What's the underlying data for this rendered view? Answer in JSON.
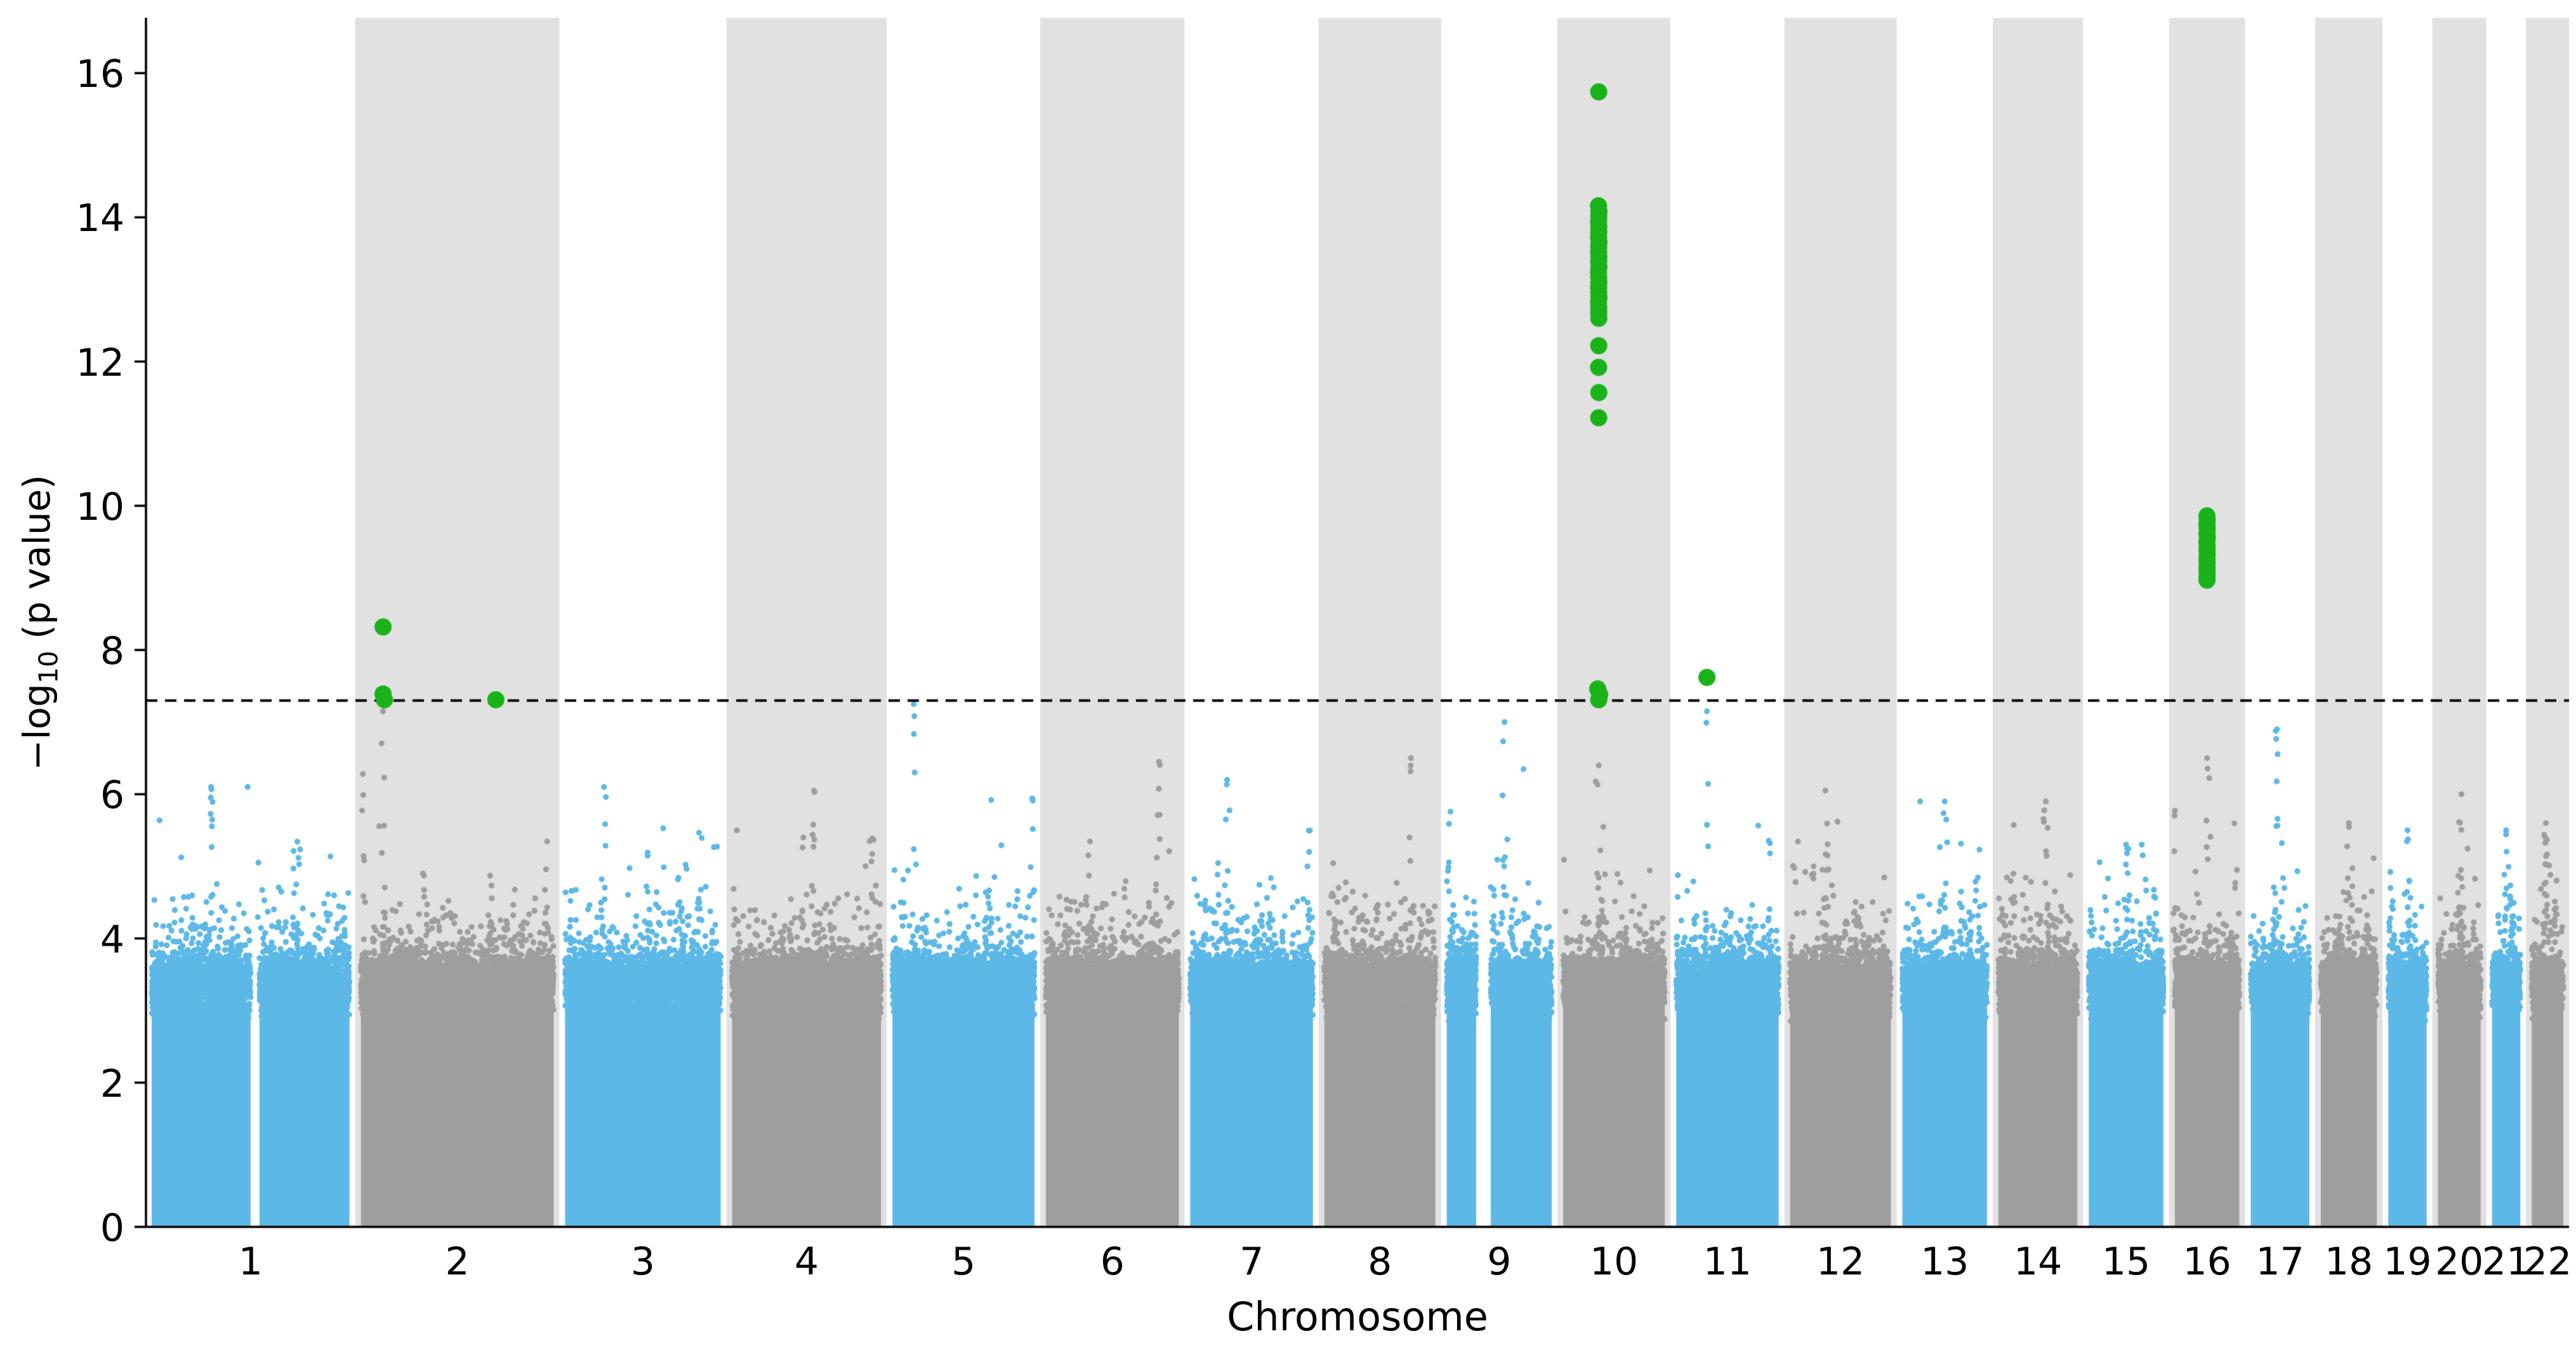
{
  "chart_data": {
    "type": "scatter",
    "subtype": "manhattan-plot",
    "title": "",
    "xlabel": "Chromosome",
    "ylabel": "−log10 (p value)",
    "ylabel_prefix": "−log",
    "ylabel_sub": "10",
    "ylabel_suffix": " (p value)",
    "ylim": [
      0,
      16.75
    ],
    "yticks": [
      "0",
      "2",
      "4",
      "6",
      "8",
      "10",
      "12",
      "14",
      "16"
    ],
    "grid": false,
    "legend": false,
    "significance_threshold": 7.3,
    "threshold_line_style": "dashed",
    "colors": {
      "odd_chromosome": "#5CB8E6",
      "even_chromosome": "#9E9E9E",
      "significant": "#19B219",
      "band": "#E1E1E1",
      "threshold_line": "#000000",
      "axis": "#000000"
    },
    "chromosomes": [
      {
        "label": "1",
        "size": 248,
        "bg_max": 6.1,
        "peak_rel": 0.3,
        "gap": [
          0.5,
          0.545
        ]
      },
      {
        "label": "2",
        "size": 242,
        "bg_max": 7.15,
        "peak_rel": 0.115
      },
      {
        "label": "3",
        "size": 198,
        "bg_max": 6.1,
        "peak_rel": 0.25
      },
      {
        "label": "4",
        "size": 190,
        "bg_max": 6.05,
        "peak_rel": 0.55
      },
      {
        "label": "5",
        "size": 182,
        "bg_max": 7.25,
        "peak_rel": 0.15
      },
      {
        "label": "6",
        "size": 171,
        "bg_max": 6.45,
        "peak_rel": 0.85
      },
      {
        "label": "7",
        "size": 159,
        "bg_max": 6.2,
        "peak_rel": 0.3
      },
      {
        "label": "8",
        "size": 145,
        "bg_max": 6.5,
        "peak_rel": 0.78
      },
      {
        "label": "9",
        "size": 138,
        "bg_max": 7.0,
        "peak_rel": 0.55,
        "gap": [
          0.28,
          0.42
        ]
      },
      {
        "label": "10",
        "size": 134,
        "bg_max": 6.4,
        "peak_rel": 0.35
      },
      {
        "label": "11",
        "size": 135,
        "bg_max": 7.15,
        "peak_rel": 0.3
      },
      {
        "label": "12",
        "size": 133,
        "bg_max": 6.05,
        "peak_rel": 0.35
      },
      {
        "label": "13",
        "size": 114,
        "bg_max": 5.9,
        "peak_rel": 0.5
      },
      {
        "label": "14",
        "size": 107,
        "bg_max": 5.9,
        "peak_rel": 0.6
      },
      {
        "label": "15",
        "size": 102,
        "bg_max": 5.3,
        "peak_rel": 0.5
      },
      {
        "label": "16",
        "size": 90,
        "bg_max": 6.5,
        "peak_rel": 0.5
      },
      {
        "label": "17",
        "size": 83,
        "bg_max": 6.9,
        "peak_rel": 0.45
      },
      {
        "label": "18",
        "size": 80,
        "bg_max": 5.6,
        "peak_rel": 0.5
      },
      {
        "label": "19",
        "size": 59,
        "bg_max": 5.5,
        "peak_rel": 0.5
      },
      {
        "label": "20",
        "size": 64,
        "bg_max": 6.0,
        "peak_rel": 0.55
      },
      {
        "label": "21",
        "size": 47,
        "bg_max": 5.5,
        "peak_rel": 0.5
      },
      {
        "label": "22",
        "size": 51,
        "bg_max": 5.6,
        "peak_rel": 0.45
      }
    ],
    "significant_points_format": [
      "chr",
      "x_rel",
      "neg_log10_p"
    ],
    "significant_points": [
      [
        "2",
        0.115,
        8.32
      ],
      [
        "2",
        0.115,
        7.39
      ],
      [
        "2",
        0.122,
        7.31
      ],
      [
        "2",
        0.7,
        7.31
      ],
      [
        "10",
        0.35,
        15.74
      ],
      [
        "10",
        0.348,
        14.16
      ],
      [
        "10",
        0.352,
        14.08
      ],
      [
        "10",
        0.35,
        14.01
      ],
      [
        "10",
        0.349,
        13.94
      ],
      [
        "10",
        0.351,
        13.87
      ],
      [
        "10",
        0.35,
        13.8
      ],
      [
        "10",
        0.348,
        13.73
      ],
      [
        "10",
        0.352,
        13.66
      ],
      [
        "10",
        0.35,
        13.59
      ],
      [
        "10",
        0.349,
        13.52
      ],
      [
        "10",
        0.351,
        13.45
      ],
      [
        "10",
        0.35,
        13.38
      ],
      [
        "10",
        0.352,
        13.31
      ],
      [
        "10",
        0.348,
        13.24
      ],
      [
        "10",
        0.35,
        13.17
      ],
      [
        "10",
        0.351,
        13.1
      ],
      [
        "10",
        0.349,
        13.03
      ],
      [
        "10",
        0.35,
        12.96
      ],
      [
        "10",
        0.352,
        12.89
      ],
      [
        "10",
        0.348,
        12.82
      ],
      [
        "10",
        0.35,
        12.75
      ],
      [
        "10",
        0.35,
        12.68
      ],
      [
        "10",
        0.351,
        12.6
      ],
      [
        "10",
        0.35,
        12.22
      ],
      [
        "10",
        0.349,
        11.92
      ],
      [
        "10",
        0.351,
        11.57
      ],
      [
        "10",
        0.35,
        11.22
      ],
      [
        "10",
        0.34,
        7.46
      ],
      [
        "10",
        0.36,
        7.38
      ],
      [
        "10",
        0.35,
        7.31
      ],
      [
        "11",
        0.3,
        7.62
      ],
      [
        "16",
        0.498,
        9.86
      ],
      [
        "16",
        0.503,
        9.8
      ],
      [
        "16",
        0.497,
        9.74
      ],
      [
        "16",
        0.502,
        9.68
      ],
      [
        "16",
        0.499,
        9.62
      ],
      [
        "16",
        0.504,
        9.56
      ],
      [
        "16",
        0.497,
        9.5
      ],
      [
        "16",
        0.501,
        9.44
      ],
      [
        "16",
        0.499,
        9.38
      ],
      [
        "16",
        0.503,
        9.32
      ],
      [
        "16",
        0.498,
        9.26
      ],
      [
        "16",
        0.502,
        9.2
      ],
      [
        "16",
        0.499,
        9.14
      ],
      [
        "16",
        0.501,
        9.08
      ],
      [
        "16",
        0.5,
        9.02
      ],
      [
        "16",
        0.499,
        8.97
      ]
    ]
  }
}
